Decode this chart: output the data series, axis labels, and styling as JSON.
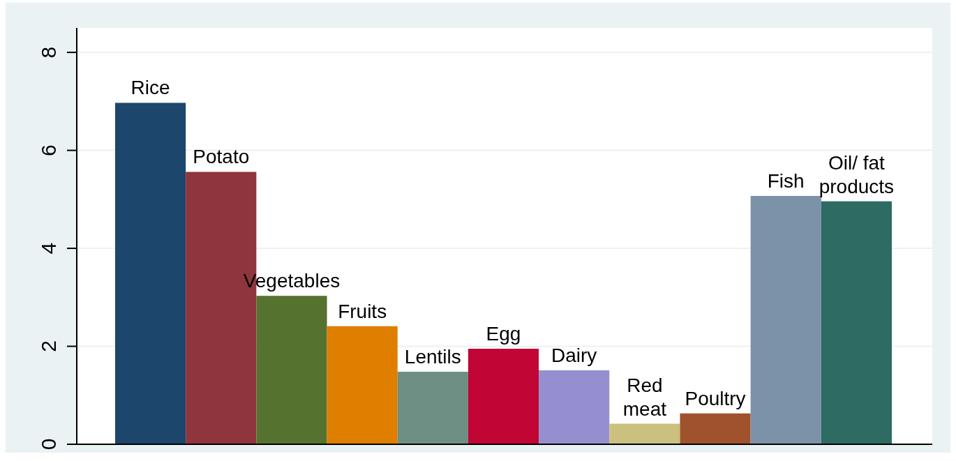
{
  "chart_data": {
    "type": "bar",
    "categories": [
      "Rice",
      "Potato",
      "Vegetables",
      "Fruits",
      "Lentils",
      "Egg",
      "Dairy",
      "Red\nmeat",
      "Poultry",
      "Fish",
      "Oil/ fat\nproducts"
    ],
    "values": [
      6.97,
      5.56,
      3.03,
      2.41,
      1.48,
      1.95,
      1.51,
      0.42,
      0.63,
      5.07,
      4.96
    ],
    "colors": [
      "#1d466d",
      "#8f353d",
      "#56722f",
      "#e07e00",
      "#6e8f83",
      "#c10534",
      "#958fcf",
      "#cbc07e",
      "#a0522d",
      "#7c92a8",
      "#2e6b63"
    ],
    "ylim": [
      0,
      8.5
    ],
    "yticks": [
      0,
      2,
      4,
      6,
      8
    ],
    "grid": "y",
    "tick_labels": "y"
  }
}
